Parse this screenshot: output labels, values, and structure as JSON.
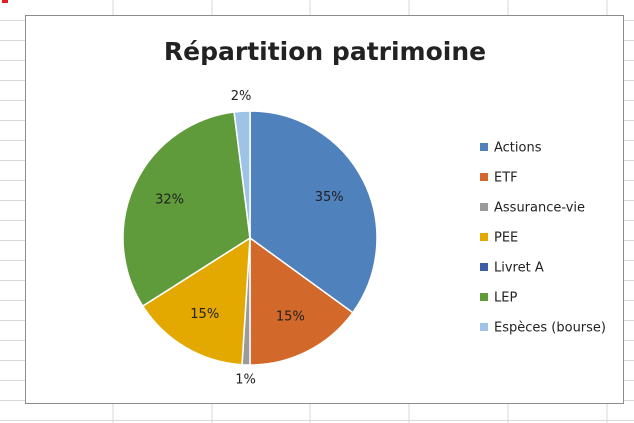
{
  "chart_data": {
    "type": "pie",
    "title": "Répartition patrimoine",
    "categories": [
      "Actions",
      "ETF",
      "Assurance-vie",
      "PEE",
      "Livret A",
      "LEP",
      "Espèces (bourse)"
    ],
    "values": [
      35,
      15,
      1,
      15,
      0,
      32,
      2
    ],
    "value_labels": [
      "35%",
      "15%",
      "1%",
      "15%",
      null,
      "32%",
      "2%"
    ],
    "colors": [
      "#4f81bd",
      "#d2692a",
      "#9a9a9a",
      "#e3a900",
      "#3b5ea6",
      "#5f9a3b",
      "#9dc3e6"
    ],
    "legend": "right"
  }
}
